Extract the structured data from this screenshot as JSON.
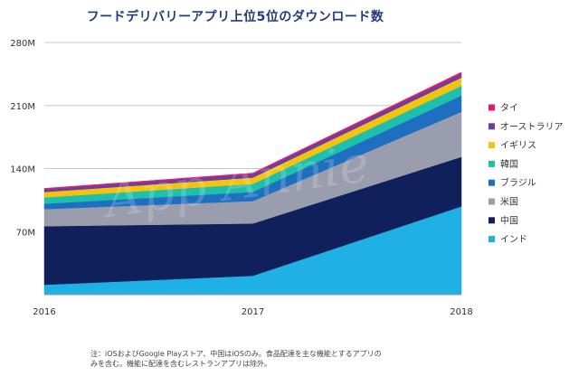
{
  "title": "フードデリバリーアプリ上位5位のダウンロード数",
  "watermark": "App Annie",
  "footnote": {
    "line1": "注：iOSおよびGoogle Playストア、中国はiOSのみ。食品配達を主な機能とするアプリの",
    "line2": "みを含む。機能に配達を含むレストランアプリは除外。"
  },
  "chart_data": {
    "type": "area",
    "stacked": true,
    "x": [
      "2016",
      "2017",
      "2018"
    ],
    "ylim": [
      0,
      280
    ],
    "yticks": [
      {
        "value": 70,
        "label": "70M"
      },
      {
        "value": 140,
        "label": "140M"
      },
      {
        "value": 210,
        "label": "210M"
      },
      {
        "value": 280,
        "label": "280M"
      }
    ],
    "grid": true,
    "legend_position": "right",
    "series": [
      {
        "name": "インド",
        "color": "#1fb1e6",
        "values": [
          11,
          21,
          98
        ]
      },
      {
        "name": "中国",
        "color": "#10205a",
        "values": [
          65,
          58,
          55
        ]
      },
      {
        "name": "米国",
        "color": "#9a9dad",
        "values": [
          19,
          25,
          50
        ]
      },
      {
        "name": "ブラジル",
        "color": "#1f6fc0",
        "values": [
          6,
          10,
          18
        ]
      },
      {
        "name": "韓国",
        "color": "#1fbfad",
        "values": [
          7,
          9,
          11
        ]
      },
      {
        "name": "イギリス",
        "color": "#f2c40f",
        "values": [
          6,
          7,
          9
        ]
      },
      {
        "name": "オーストラリア",
        "color": "#6a3f9e",
        "values": [
          3,
          4,
          4
        ]
      },
      {
        "name": "タイ",
        "color": "#e6196e",
        "values": [
          1,
          1,
          2
        ]
      }
    ]
  }
}
